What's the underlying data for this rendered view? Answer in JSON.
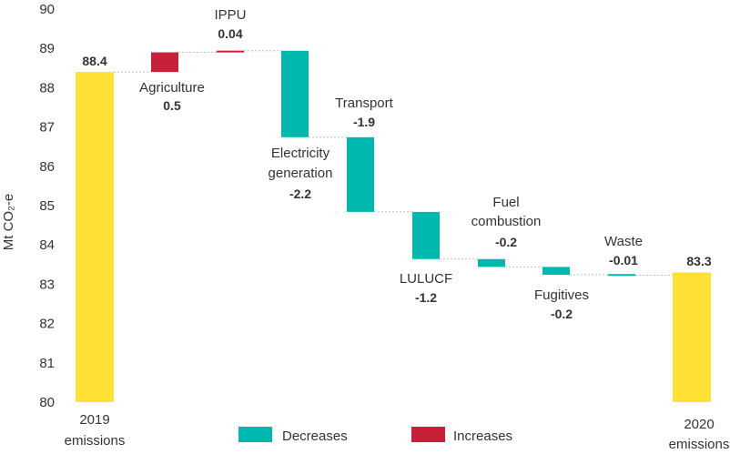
{
  "chart_data": {
    "type": "waterfall",
    "ylabel": "Mt CO₂-e",
    "ylim": [
      80,
      90
    ],
    "yticks": [
      "80",
      "81",
      "82",
      "83",
      "84",
      "85",
      "86",
      "87",
      "88",
      "89",
      "90"
    ],
    "steps": [
      {
        "key": "y2019",
        "label_lines": [
          "2019",
          "emissions"
        ],
        "value": 88.4,
        "value_label": "88.4",
        "kind": "total"
      },
      {
        "key": "agriculture",
        "label_lines": [
          "Agriculture"
        ],
        "value": 0.5,
        "value_label": "0.5",
        "kind": "increase"
      },
      {
        "key": "ippu",
        "label_lines": [
          "IPPU"
        ],
        "value": 0.04,
        "value_label": "0.04",
        "kind": "increase"
      },
      {
        "key": "electricity",
        "label_lines": [
          "Electricity",
          "generation"
        ],
        "value": -2.2,
        "value_label": "-2.2",
        "kind": "decrease"
      },
      {
        "key": "transport",
        "label_lines": [
          "Transport"
        ],
        "value": -1.9,
        "value_label": "-1.9",
        "kind": "decrease"
      },
      {
        "key": "lulucf",
        "label_lines": [
          "LULUCF"
        ],
        "value": -1.2,
        "value_label": "-1.2",
        "kind": "decrease"
      },
      {
        "key": "fuel",
        "label_lines": [
          "Fuel",
          "combustion"
        ],
        "value": -0.2,
        "value_label": "-0.2",
        "kind": "decrease"
      },
      {
        "key": "fugitives",
        "label_lines": [
          "Fugitives"
        ],
        "value": -0.2,
        "value_label": "-0.2",
        "kind": "decrease"
      },
      {
        "key": "waste",
        "label_lines": [
          "Waste"
        ],
        "value": -0.01,
        "value_label": "-0.01",
        "kind": "decrease"
      },
      {
        "key": "y2020",
        "label_lines": [
          "2020",
          "emissions"
        ],
        "value": 83.3,
        "value_label": "83.3",
        "kind": "total"
      }
    ],
    "legend": [
      {
        "key": "decreases",
        "label": "Decreases",
        "color": "#00B8AE"
      },
      {
        "key": "increases",
        "label": "Increases",
        "color": "#C8203A"
      }
    ],
    "colors": {
      "total": "#FFE135",
      "increase": "#C8203A",
      "decrease": "#00B8AE",
      "connector": "#bfbfbf"
    }
  }
}
